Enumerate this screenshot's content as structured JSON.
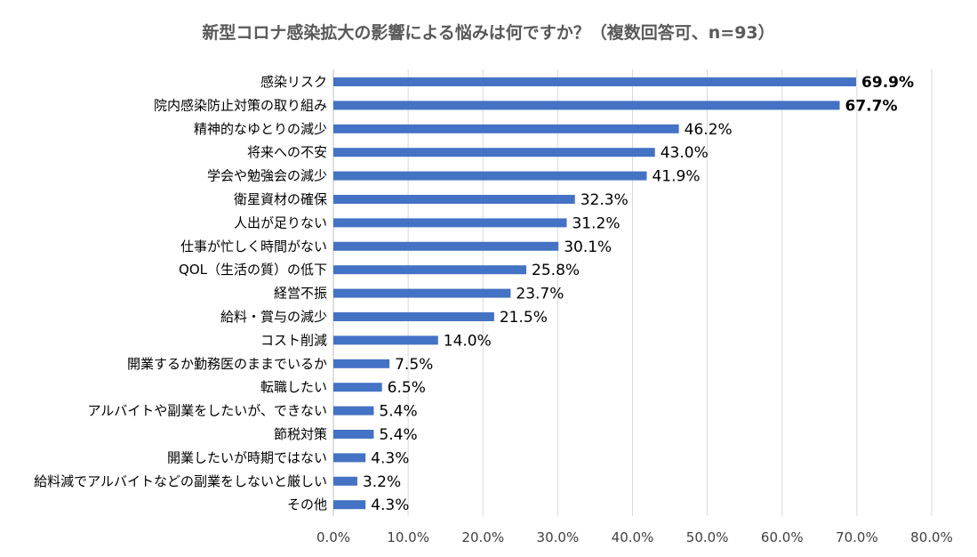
{
  "chart_data": {
    "type": "bar",
    "orientation": "horizontal",
    "title": "新型コロナ感染拡大の影響による悩みは何ですか？（複数回答可、n=93）",
    "xlabel": "",
    "ylabel": "",
    "xlim": [
      0,
      80
    ],
    "grid": true,
    "bar_color": "#4472C4",
    "x_ticks": [
      "0.0%",
      "10.0%",
      "20.0%",
      "30.0%",
      "40.0%",
      "50.0%",
      "60.0%",
      "70.0%",
      "80.0%"
    ],
    "categories": [
      "感染リスク",
      "院内感染防止対策の取り組み",
      "精神的なゆとりの減少",
      "将来への不安",
      "学会や勉強会の減少",
      "衛星資材の確保",
      "人出が足りない",
      "仕事が忙しく時間がない",
      "QOL（生活の質）の低下",
      "経営不振",
      "給料・賞与の減少",
      "コスト削減",
      "開業するか勤務医のままでいるか",
      "転職したい",
      "アルバイトや副業をしたいが、できない",
      "節税対策",
      "開業したいが時期ではない",
      "給料減でアルバイトなどの副業をしないと厳しい",
      "その他"
    ],
    "values": [
      69.9,
      67.7,
      46.2,
      43.0,
      41.9,
      32.3,
      31.2,
      30.1,
      25.8,
      23.7,
      21.5,
      14.0,
      7.5,
      6.5,
      5.4,
      5.4,
      4.3,
      3.2,
      4.3
    ],
    "labels": [
      "69.9%",
      "67.7%",
      "46.2%",
      "43.0%",
      "41.9%",
      "32.3%",
      "31.2%",
      "30.1%",
      "25.8%",
      "23.7%",
      "21.5%",
      "14.0%",
      "7.5%",
      "6.5%",
      "5.4%",
      "5.4%",
      "4.3%",
      "3.2%",
      "4.3%"
    ],
    "highlighted": [
      0,
      1
    ]
  }
}
